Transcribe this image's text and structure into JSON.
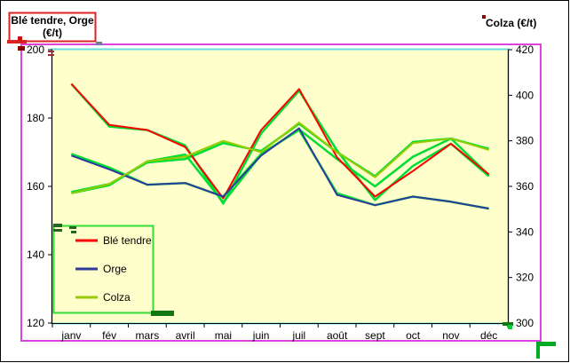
{
  "chart_data": {
    "type": "line",
    "categories": [
      "janv",
      "fév",
      "mars",
      "avril",
      "mai",
      "juin",
      "juil",
      "août",
      "sept",
      "oct",
      "nov",
      "déc"
    ],
    "y_left": {
      "title_line1": "Blé tendre, Orge",
      "title_line2": "(€/t)",
      "range": [
        120,
        200
      ],
      "ticks": [
        120,
        140,
        160,
        180,
        200
      ]
    },
    "y_right": {
      "title": "Colza (€/t)",
      "range": [
        300,
        420
      ],
      "ticks": [
        300,
        320,
        340,
        360,
        380,
        400,
        420
      ]
    },
    "series": [
      {
        "name": "Blé tendre",
        "axis": "left",
        "color": "#ff0000",
        "values": [
          190,
          178,
          176.5,
          171.5,
          156.5,
          176.5,
          188.5,
          168.5,
          157,
          164.5,
          172.5,
          163.5
        ]
      },
      {
        "name": "Orge",
        "axis": "left",
        "color": "#2b3a9c",
        "values": [
          169,
          165,
          160.5,
          161,
          157,
          169,
          177,
          157.5,
          154.5,
          157,
          155.5,
          153.5
        ]
      },
      {
        "name": "Colza",
        "axis": "right",
        "color": "#99cc00",
        "values": [
          357,
          361,
          371,
          373,
          380,
          375,
          388,
          375,
          364,
          379,
          381,
          376
        ]
      }
    ],
    "overlay_series": [
      {
        "axis": "left",
        "color": "#00dd33",
        "values": [
          190,
          177.5,
          176.5,
          172,
          155,
          175.5,
          188,
          170.5,
          156,
          166,
          172.5,
          163
        ]
      },
      {
        "axis": "left",
        "color": "#00dd33",
        "values": [
          169.5,
          165.5,
          160.5,
          161,
          157,
          169.5,
          176.5,
          158,
          154.5,
          157,
          155.5,
          153.5
        ]
      },
      {
        "axis": "right",
        "color": "#00dd33",
        "values": [
          357,
          360.5,
          371,
          374,
          353,
          374,
          385,
          372,
          360,
          373,
          381,
          365
        ]
      },
      {
        "axis": "right",
        "color": "#00dd33",
        "values": [
          357.5,
          361,
          370.5,
          372,
          379,
          375.5,
          387.5,
          375,
          364.5,
          379.5,
          381,
          376.5
        ]
      }
    ],
    "legend": [
      "Blé tendre",
      "Orge",
      "Colza"
    ],
    "legend_position": "bottom-left",
    "grid": false,
    "plot_background": "#ffffcc",
    "colors": {
      "annotation_magenta": "#dd44dd",
      "annotation_cyan": "#66dddd",
      "annotation_red": "#dd2222",
      "annotation_green": "#00cc33",
      "legend_border": "#33dd33"
    }
  }
}
